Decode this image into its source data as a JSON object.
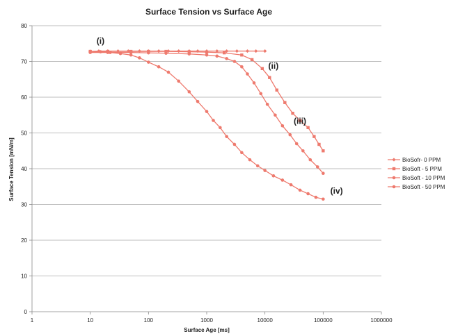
{
  "chart_data": {
    "type": "line",
    "title": "Surface Tension vs Surface Age",
    "xlabel": "Surface Age [ms]",
    "ylabel": "Surface Tension [mN/m]",
    "x_scale": "log",
    "xlim": [
      1,
      1000000
    ],
    "ylim": [
      0,
      80
    ],
    "x_ticks": [
      "1",
      "10",
      "100",
      "1000",
      "10000",
      "100000",
      "1000000"
    ],
    "y_ticks": [
      "0",
      "10",
      "20",
      "30",
      "40",
      "50",
      "60",
      "70",
      "80"
    ],
    "grid": "horizontal",
    "legend_position": "right",
    "line_color": "#ee7a6e",
    "series": [
      {
        "name": "BioSofr- 0 PPM",
        "marker": "diamond",
        "x": [
          10,
          14,
          20,
          30,
          45,
          70,
          100,
          150,
          220,
          330,
          500,
          700,
          1000,
          1500,
          2200,
          3300,
          5000,
          7000,
          10000
        ],
        "y": [
          72.8,
          72.9,
          72.9,
          72.9,
          72.9,
          72.9,
          72.9,
          72.9,
          72.9,
          72.9,
          72.9,
          72.9,
          72.9,
          72.9,
          72.9,
          72.9,
          72.9,
          72.9,
          72.9
        ]
      },
      {
        "name": "BioSoft - 5 PPM",
        "marker": "square",
        "x": [
          10,
          20,
          50,
          100,
          200,
          500,
          1000,
          2000,
          4000,
          6000,
          9000,
          12000,
          16000,
          22000,
          30000,
          40000,
          55000,
          70000,
          85000,
          100000
        ],
        "y": [
          72.8,
          72.8,
          72.8,
          72.8,
          72.8,
          72.7,
          72.6,
          72.4,
          71.8,
          70.5,
          68.0,
          65.5,
          62.0,
          58.5,
          55.5,
          53.5,
          51.5,
          49.0,
          46.8,
          45.0
        ]
      },
      {
        "name": "BioSoft - 10 PPM",
        "marker": "circle",
        "x": [
          10,
          20,
          50,
          100,
          200,
          500,
          1000,
          1500,
          2200,
          3000,
          4000,
          5000,
          6500,
          8500,
          11000,
          15000,
          20000,
          27000,
          35000,
          45000,
          60000,
          80000,
          100000
        ],
        "y": [
          72.5,
          72.5,
          72.5,
          72.4,
          72.3,
          72.1,
          71.8,
          71.5,
          70.8,
          70.0,
          68.5,
          66.5,
          64.0,
          61.0,
          58.0,
          55.0,
          52.0,
          49.5,
          47.0,
          45.0,
          42.5,
          40.5,
          38.7
        ]
      },
      {
        "name": "BioSoft - 50 PPM",
        "marker": "circle",
        "x": [
          10,
          15,
          22,
          33,
          50,
          70,
          100,
          150,
          220,
          330,
          500,
          700,
          1000,
          1300,
          1700,
          2200,
          3000,
          4000,
          5500,
          7500,
          10000,
          14000,
          20000,
          28000,
          40000,
          55000,
          75000,
          100000
        ],
        "y": [
          72.8,
          72.7,
          72.5,
          72.2,
          71.8,
          71.0,
          69.8,
          68.5,
          67.0,
          64.5,
          61.5,
          58.8,
          56.0,
          53.5,
          51.5,
          49.0,
          46.8,
          44.5,
          42.5,
          40.8,
          39.5,
          38.0,
          36.8,
          35.5,
          34.0,
          33.0,
          32.0,
          31.5
        ]
      }
    ],
    "annotations": [
      {
        "text": "(i)",
        "x": 15,
        "y": 75
      },
      {
        "text": "(ii)",
        "x": 14000,
        "y": 68
      },
      {
        "text": "(iii)",
        "x": 40000,
        "y": 52.5
      },
      {
        "text": "(iv)",
        "x": 170000,
        "y": 33
      }
    ]
  }
}
